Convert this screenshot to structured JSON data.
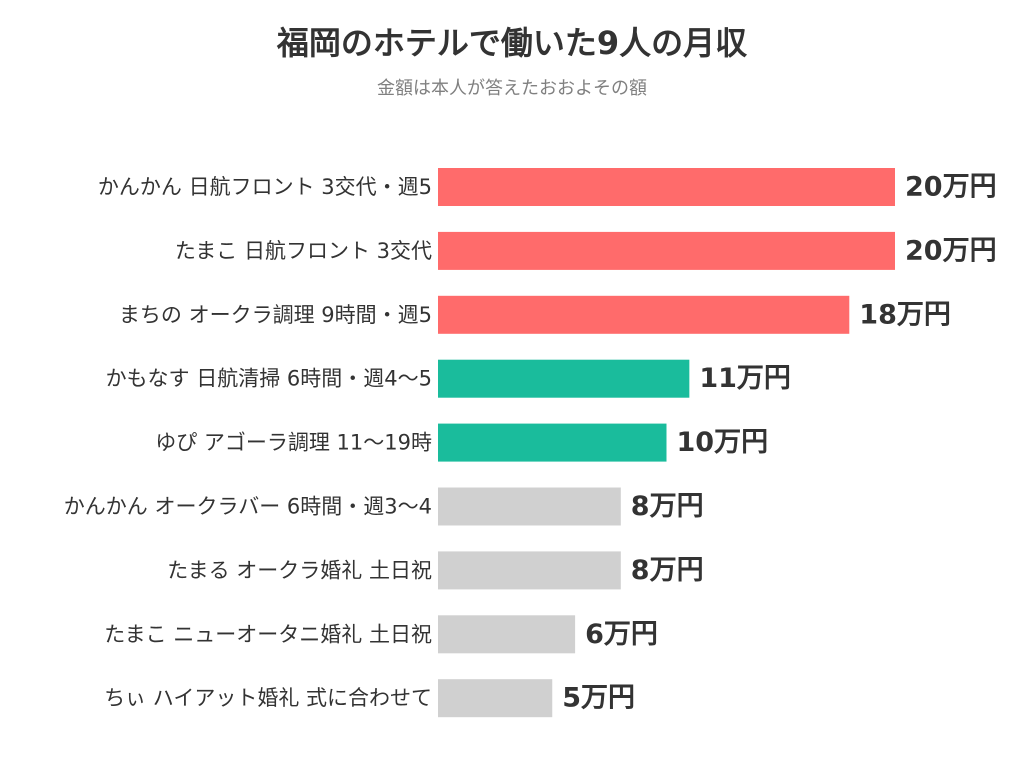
{
  "colors": {
    "background": "#ffffff",
    "high": "#ff6b6b",
    "mid": "#1abc9c",
    "low": "#d0d0d0",
    "text": "#333333",
    "subtitle": "#808080"
  },
  "chart_data": {
    "type": "bar",
    "orientation": "horizontal",
    "title": "福岡のホテルで働いた9人の月収",
    "subtitle": "金額は本人が答えたおおよその額",
    "xlabel": "",
    "ylabel": "",
    "grid": false,
    "legend": "none",
    "xlim": [
      0,
      20
    ],
    "categories": [
      "かんかん 日航フロント 3交代・週5",
      "たまこ 日航フロント 3交代",
      "まちの オークラ調理 9時間・週5",
      "かもなす 日航清掃 6時間・週4〜5",
      "ゆぴ アゴーラ調理 11〜19時",
      "かんかん オークラバー 6時間・週3〜4",
      "たまる オークラ婚礼 土日祝",
      "たまこ ニューオータニ婚礼 土日祝",
      "ちぃ ハイアット婚礼 式に合わせて"
    ],
    "values": [
      20,
      20,
      18,
      11,
      10,
      8,
      8,
      6,
      5
    ],
    "value_labels": [
      "20万円",
      "20万円",
      "18万円",
      "11万円",
      "10万円",
      "8万円",
      "8万円",
      "6万円",
      "5万円"
    ],
    "bar_colors": [
      "#ff6b6b",
      "#ff6b6b",
      "#ff6b6b",
      "#1abc9c",
      "#1abc9c",
      "#d0d0d0",
      "#d0d0d0",
      "#d0d0d0",
      "#d0d0d0"
    ]
  }
}
